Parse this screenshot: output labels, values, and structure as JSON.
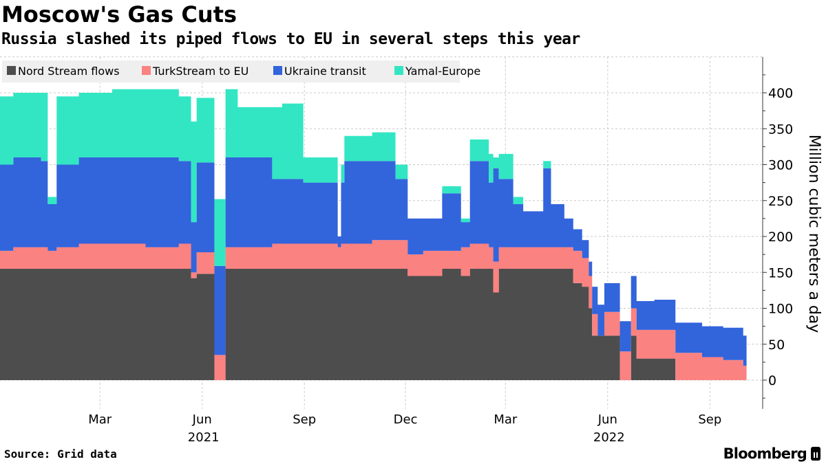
{
  "title": "Moscow's Gas Cuts",
  "subtitle": "Russia slashed its piped flows to EU in several steps this year",
  "source": "Source: Grid data",
  "brand": "Bloomberg",
  "chart_data": {
    "type": "area",
    "stacked": true,
    "title": "Moscow's Gas Cuts",
    "subtitle": "Russia slashed its piped flows to EU in several steps this year",
    "ylabel": "Million cubic meters a day",
    "xlabel": "",
    "x_unit": "days since 2021-01-01",
    "xlim": [
      -31,
      641
    ],
    "ylim": [
      -40,
      450
    ],
    "yticks": [
      0,
      50,
      100,
      150,
      200,
      250,
      300,
      350,
      400
    ],
    "xticks": [
      {
        "day": 59,
        "label": "Mar"
      },
      {
        "day": 151,
        "label": "Jun"
      },
      {
        "day": 243,
        "label": "Sep"
      },
      {
        "day": 334,
        "label": "Dec"
      },
      {
        "day": 424,
        "label": "Mar"
      },
      {
        "day": 516,
        "label": "Jun"
      },
      {
        "day": 608,
        "label": "Sep"
      }
    ],
    "year_labels": [
      {
        "day": 151,
        "label": "2021"
      },
      {
        "day": 516,
        "label": "2022"
      }
    ],
    "grid": true,
    "legend_position": "top-left",
    "series_names": [
      "Nord Stream flows",
      "TurkStream to EU",
      "Ukraine transit",
      "Yamal-Europe"
    ],
    "colors": [
      "#4d4d4d",
      "#fa8281",
      "#3264dc",
      "#33e6c3"
    ],
    "x": [
      -31,
      -19,
      6,
      12,
      20,
      40,
      70,
      100,
      130,
      141,
      146,
      162,
      172,
      183,
      214,
      223,
      242,
      273,
      276,
      279,
      304,
      325,
      336,
      350,
      367,
      384,
      392,
      409,
      413,
      418,
      431,
      440,
      458,
      465,
      477,
      485,
      493,
      499,
      502,
      507,
      513,
      527,
      537,
      542,
      558,
      577,
      601,
      620,
      638,
      641
    ],
    "series": [
      {
        "name": "Nord Stream flows",
        "values": [
          155,
          155,
          155,
          155,
          155,
          155,
          155,
          155,
          155,
          142,
          148,
          0,
          155,
          155,
          155,
          155,
          155,
          155,
          155,
          155,
          155,
          155,
          145,
          145,
          155,
          145,
          155,
          155,
          122,
          155,
          155,
          155,
          155,
          155,
          155,
          135,
          130,
          100,
          62,
          62,
          62,
          0,
          62,
          30,
          30,
          0,
          0,
          0,
          0,
          0
        ]
      },
      {
        "name": "TurkStream to EU",
        "values": [
          25,
          30,
          30,
          25,
          30,
          35,
          35,
          30,
          35,
          8,
          30,
          35,
          30,
          30,
          35,
          35,
          35,
          30,
          35,
          35,
          40,
          40,
          30,
          35,
          25,
          40,
          35,
          30,
          43,
          30,
          30,
          30,
          30,
          30,
          30,
          45,
          40,
          45,
          30,
          0,
          33,
          40,
          38,
          40,
          40,
          38,
          32,
          28,
          20,
          20
        ]
      },
      {
        "name": "Ukraine transit",
        "values": [
          120,
          125,
          120,
          65,
          115,
          120,
          120,
          125,
          115,
          70,
          125,
          124,
          125,
          125,
          90,
          90,
          85,
          15,
          85,
          115,
          110,
          85,
          50,
          45,
          80,
          35,
          115,
          90,
          130,
          95,
          60,
          50,
          110,
          60,
          40,
          30,
          25,
          20,
          38,
          43,
          40,
          42,
          45,
          40,
          42,
          42,
          43,
          45,
          42,
          42
        ]
      },
      {
        "name": "Yamal-Europe",
        "values": [
          95,
          90,
          95,
          10,
          95,
          90,
          95,
          95,
          90,
          140,
          90,
          93,
          95,
          70,
          100,
          105,
          35,
          0,
          25,
          35,
          40,
          20,
          0,
          0,
          10,
          5,
          30,
          40,
          15,
          35,
          10,
          0,
          10,
          0,
          0,
          0,
          0,
          0,
          0,
          0,
          0,
          0,
          0,
          0,
          0,
          0,
          0,
          0,
          0,
          0
        ]
      }
    ]
  }
}
